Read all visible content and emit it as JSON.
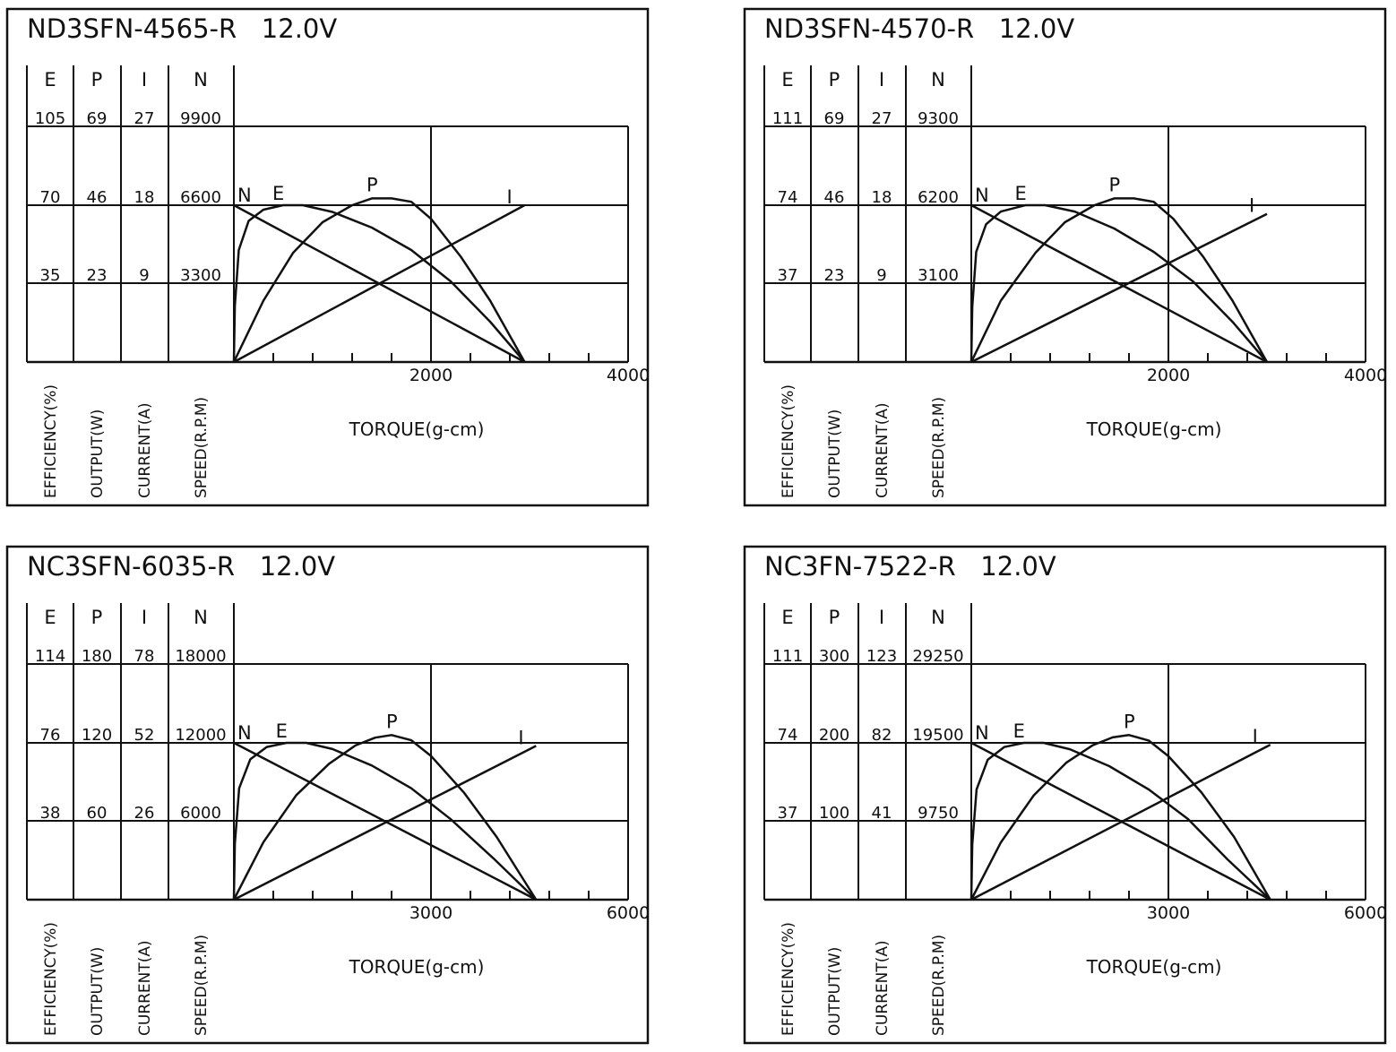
{
  "chart_data": [
    {
      "type": "line",
      "title": "ND3SFN-4565-R   12.0V",
      "column_headers": [
        "E",
        "P",
        "I",
        "N"
      ],
      "scale_rows": [
        [
          "105",
          "69",
          "27",
          "9900"
        ],
        [
          "70",
          "46",
          "18",
          "6600"
        ],
        [
          "35",
          "23",
          "9",
          "3300"
        ]
      ],
      "axis_labels": [
        "EFFICIENCY(%)",
        "OUTPUT(W)",
        "CURRENT(A)",
        "SPEED(R.P.M)"
      ],
      "xlabel": "TORQUE(g-cm)",
      "x_ticks": [
        "2000",
        "4000"
      ],
      "xlim": [
        0,
        4000
      ],
      "curve_labels": [
        "N",
        "E",
        "P",
        "I"
      ],
      "series": [
        {
          "name": "N",
          "x": [
            0,
            2950
          ],
          "y": [
            6600,
            0
          ]
        },
        {
          "name": "E",
          "x": [
            0,
            10,
            50,
            150,
            300,
            500,
            700,
            1000,
            1400,
            1800,
            2200,
            2600,
            2950
          ],
          "y": [
            0,
            25,
            50,
            63,
            68,
            70,
            70,
            67,
            60,
            50,
            36,
            18,
            0
          ]
        },
        {
          "name": "P",
          "x": [
            0,
            300,
            600,
            900,
            1200,
            1400,
            1600,
            1800,
            2000,
            2300,
            2600,
            2950
          ],
          "y": [
            0,
            18,
            32,
            41,
            46,
            48,
            48,
            47,
            42,
            31,
            18,
            0
          ]
        },
        {
          "name": "I",
          "x": [
            0,
            2950
          ],
          "y": [
            0,
            18
          ]
        }
      ]
    },
    {
      "type": "line",
      "title": "ND3SFN-4570-R   12.0V",
      "column_headers": [
        "E",
        "P",
        "I",
        "N"
      ],
      "scale_rows": [
        [
          "111",
          "69",
          "27",
          "9300"
        ],
        [
          "74",
          "46",
          "18",
          "6200"
        ],
        [
          "37",
          "23",
          "9",
          "3100"
        ]
      ],
      "axis_labels": [
        "EFFICIENCY(%)",
        "OUTPUT(W)",
        "CURRENT(A)",
        "SPEED(R.P.M)"
      ],
      "xlabel": "TORQUE(g-cm)",
      "x_ticks": [
        "2000",
        "4000"
      ],
      "xlim": [
        0,
        4000
      ],
      "curve_labels": [
        "N",
        "E",
        "P",
        "I"
      ],
      "series": [
        {
          "name": "N",
          "x": [
            0,
            3000
          ],
          "y": [
            6200,
            0
          ]
        },
        {
          "name": "E",
          "x": [
            0,
            10,
            50,
            150,
            300,
            550,
            750,
            1050,
            1450,
            1850,
            2250,
            2650,
            3000
          ],
          "y": [
            0,
            26,
            52,
            65,
            71,
            74,
            74,
            71,
            63,
            52,
            38,
            19,
            0
          ]
        },
        {
          "name": "P",
          "x": [
            0,
            300,
            650,
            950,
            1250,
            1450,
            1650,
            1850,
            2050,
            2350,
            2650,
            3000
          ],
          "y": [
            0,
            18,
            32,
            41,
            46,
            48,
            48,
            47,
            42,
            31,
            18,
            0
          ]
        },
        {
          "name": "I",
          "x": [
            0,
            3000
          ],
          "y": [
            0,
            17
          ]
        }
      ]
    },
    {
      "type": "line",
      "title": "NC3SFN-6035-R   12.0V",
      "column_headers": [
        "E",
        "P",
        "I",
        "N"
      ],
      "scale_rows": [
        [
          "114",
          "180",
          "78",
          "18000"
        ],
        [
          "76",
          "120",
          "52",
          "12000"
        ],
        [
          "38",
          "60",
          "26",
          "6000"
        ]
      ],
      "axis_labels": [
        "EFFICIENCY(%)",
        "OUTPUT(W)",
        "CURRENT(A)",
        "SPEED(R.P.M)"
      ],
      "xlabel": "TORQUE(g-cm)",
      "x_ticks": [
        "3000",
        "6000"
      ],
      "xlim": [
        0,
        6000
      ],
      "curve_labels": [
        "N",
        "E",
        "P",
        "I"
      ],
      "series": [
        {
          "name": "N",
          "x": [
            0,
            4600
          ],
          "y": [
            12000,
            0
          ]
        },
        {
          "name": "E",
          "x": [
            0,
            15,
            80,
            250,
            500,
            800,
            1100,
            1500,
            2100,
            2700,
            3300,
            3950,
            4600
          ],
          "y": [
            0,
            27,
            54,
            68,
            74,
            76,
            76,
            73,
            65,
            54,
            39,
            20,
            0
          ]
        },
        {
          "name": "P",
          "x": [
            0,
            450,
            950,
            1450,
            1850,
            2150,
            2400,
            2700,
            3000,
            3500,
            4000,
            4600
          ],
          "y": [
            0,
            44,
            80,
            104,
            118,
            124,
            126,
            122,
            110,
            82,
            48,
            0
          ]
        },
        {
          "name": "I",
          "x": [
            0,
            4600
          ],
          "y": [
            0,
            51
          ]
        }
      ]
    },
    {
      "type": "line",
      "title": "NC3FN-7522-R   12.0V",
      "column_headers": [
        "E",
        "P",
        "I",
        "N"
      ],
      "scale_rows": [
        [
          "111",
          "300",
          "123",
          "29250"
        ],
        [
          "74",
          "200",
          "82",
          "19500"
        ],
        [
          "37",
          "100",
          "41",
          "9750"
        ]
      ],
      "axis_labels": [
        "EFFICIENCY(%)",
        "OUTPUT(W)",
        "CURRENT(A)",
        "SPEED(R.P.M)"
      ],
      "xlabel": "TORQUE(g-cm)",
      "x_ticks": [
        "3000",
        "6000"
      ],
      "xlim": [
        0,
        6000
      ],
      "curve_labels": [
        "N",
        "E",
        "P",
        "I"
      ],
      "series": [
        {
          "name": "N",
          "x": [
            0,
            4550
          ],
          "y": [
            19500,
            0
          ]
        },
        {
          "name": "E",
          "x": [
            0,
            15,
            80,
            250,
            500,
            800,
            1100,
            1500,
            2100,
            2700,
            3300,
            3900,
            4550
          ],
          "y": [
            0,
            26,
            52,
            66,
            72,
            74,
            74,
            71,
            63,
            52,
            38,
            19,
            0
          ]
        },
        {
          "name": "P",
          "x": [
            0,
            450,
            950,
            1450,
            1850,
            2150,
            2400,
            2700,
            3000,
            3500,
            4000,
            4550
          ],
          "y": [
            0,
            73,
            133,
            175,
            197,
            207,
            210,
            203,
            183,
            137,
            80,
            0
          ]
        },
        {
          "name": "I",
          "x": [
            0,
            4550
          ],
          "y": [
            0,
            81
          ]
        }
      ]
    }
  ]
}
